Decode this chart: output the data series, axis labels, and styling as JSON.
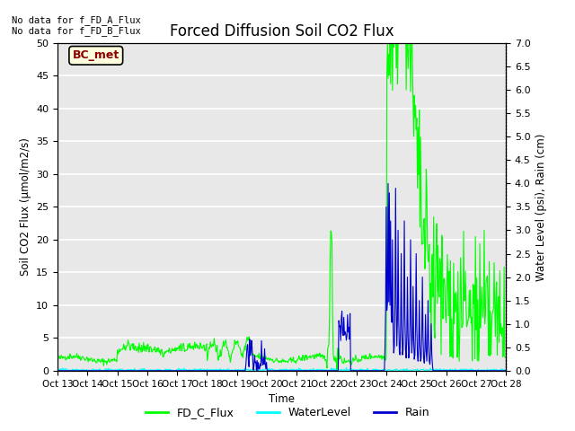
{
  "title": "Forced Diffusion Soil CO2 Flux",
  "xlabel": "Time",
  "ylabel_left": "Soil CO2 Flux (μmol/m2/s)",
  "ylabel_right": "Water Level (psi), Rain (cm)",
  "no_data_text1": "No data for f_FD_A_Flux",
  "no_data_text2": "No data for f_FD_B_Flux",
  "bc_met_label": "BC_met",
  "ylim_left": [
    0,
    50
  ],
  "ylim_right": [
    0,
    7.0
  ],
  "yticks_left": [
    0,
    5,
    10,
    15,
    20,
    25,
    30,
    35,
    40,
    45,
    50
  ],
  "yticks_right": [
    0.0,
    0.5,
    1.0,
    1.5,
    2.0,
    2.5,
    3.0,
    3.5,
    4.0,
    4.5,
    5.0,
    5.5,
    6.0,
    6.5,
    7.0
  ],
  "xtick_labels": [
    "Oct 13",
    "Oct 14",
    "Oct 15",
    "Oct 16",
    "Oct 17",
    "Oct 18",
    "Oct 19",
    "Oct 20",
    "Oct 21",
    "Oct 22",
    "Oct 23",
    "Oct 24",
    "Oct 25",
    "Oct 26",
    "Oct 27",
    "Oct 28"
  ],
  "background_color": "#e8e8e8",
  "grid_color": "#ffffff",
  "fd_c_color": "#00ff00",
  "water_color": "#00ffff",
  "rain_color": "#0000cc",
  "legend_items": [
    "FD_C_Flux",
    "WaterLevel",
    "Rain"
  ],
  "legend_colors": [
    "#00ff00",
    "#00ffff",
    "#0000cc"
  ]
}
